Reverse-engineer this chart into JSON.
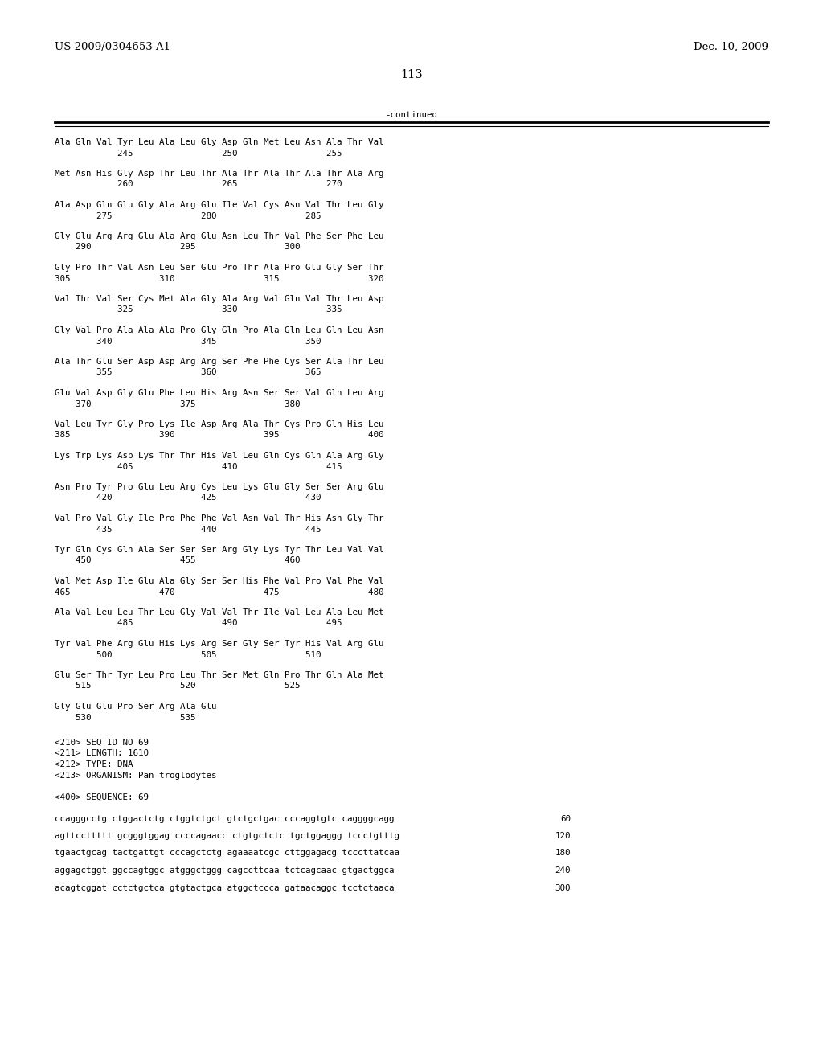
{
  "header_left": "US 2009/0304653 A1",
  "header_right": "Dec. 10, 2009",
  "page_number": "113",
  "continued_label": "-continued",
  "background_color": "#ffffff",
  "text_color": "#000000",
  "font_size_header": 9.5,
  "font_size_body": 7.8,
  "font_size_page": 10.5,
  "sequence_blocks": [
    [
      "Ala Gln Val Tyr Leu Ala Leu Gly Asp Gln Met Leu Asn Ala Thr Val",
      "            245                 250                 255"
    ],
    [
      "Met Asn His Gly Asp Thr Leu Thr Ala Thr Ala Thr Ala Thr Ala Arg",
      "            260                 265                 270"
    ],
    [
      "Ala Asp Gln Glu Gly Ala Arg Glu Ile Val Cys Asn Val Thr Leu Gly",
      "        275                 280                 285"
    ],
    [
      "Gly Glu Arg Arg Glu Ala Arg Glu Asn Leu Thr Val Phe Ser Phe Leu",
      "    290                 295                 300"
    ],
    [
      "Gly Pro Thr Val Asn Leu Ser Glu Pro Thr Ala Pro Glu Gly Ser Thr",
      "305                 310                 315                 320"
    ],
    [
      "Val Thr Val Ser Cys Met Ala Gly Ala Arg Val Gln Val Thr Leu Asp",
      "            325                 330                 335"
    ],
    [
      "Gly Val Pro Ala Ala Ala Pro Gly Gln Pro Ala Gln Leu Gln Leu Asn",
      "        340                 345                 350"
    ],
    [
      "Ala Thr Glu Ser Asp Asp Arg Arg Ser Phe Phe Cys Ser Ala Thr Leu",
      "        355                 360                 365"
    ],
    [
      "Glu Val Asp Gly Glu Phe Leu His Arg Asn Ser Ser Val Gln Leu Arg",
      "    370                 375                 380"
    ],
    [
      "Val Leu Tyr Gly Pro Lys Ile Asp Arg Ala Thr Cys Pro Gln His Leu",
      "385                 390                 395                 400"
    ],
    [
      "Lys Trp Lys Asp Lys Thr Thr His Val Leu Gln Cys Gln Ala Arg Gly",
      "            405                 410                 415"
    ],
    [
      "Asn Pro Tyr Pro Glu Leu Arg Cys Leu Lys Glu Gly Ser Ser Arg Glu",
      "        420                 425                 430"
    ],
    [
      "Val Pro Val Gly Ile Pro Phe Phe Val Asn Val Thr His Asn Gly Thr",
      "        435                 440                 445"
    ],
    [
      "Tyr Gln Cys Gln Ala Ser Ser Ser Arg Gly Lys Tyr Thr Leu Val Val",
      "    450                 455                 460"
    ],
    [
      "Val Met Asp Ile Glu Ala Gly Ser Ser His Phe Val Pro Val Phe Val",
      "465                 470                 475                 480"
    ],
    [
      "Ala Val Leu Leu Thr Leu Gly Val Val Thr Ile Val Leu Ala Leu Met",
      "            485                 490                 495"
    ],
    [
      "Tyr Val Phe Arg Glu His Lys Arg Ser Gly Ser Tyr His Val Arg Glu",
      "        500                 505                 510"
    ],
    [
      "Glu Ser Thr Tyr Leu Pro Leu Thr Ser Met Gln Pro Thr Gln Ala Met",
      "    515                 520                 525"
    ],
    [
      "Gly Glu Glu Pro Ser Arg Ala Glu",
      "    530                 535"
    ]
  ],
  "metadata_lines": [
    "<210> SEQ ID NO 69",
    "<211> LENGTH: 1610",
    "<212> TYPE: DNA",
    "<213> ORGANISM: Pan troglodytes",
    "",
    "<400> SEQUENCE: 69"
  ],
  "dna_lines": [
    [
      "ccagggcctg ctggactctg ctggtctgct gtctgctgac cccaggtgtc caggggcagg",
      "60"
    ],
    [
      "agttccttttt gcgggtggag ccccagaacc ctgtgctctc tgctggaggg tccctgtttg",
      "120"
    ],
    [
      "tgaactgcag tactgattgt cccagctctg agaaaatcgc cttggagacg tcccttatcaa",
      "180"
    ],
    [
      "aggagctggt ggccagtggc atgggctggg cagccttcaa tctcagcaac gtgactggca",
      "240"
    ],
    [
      "acagtcggat cctctgctca gtgtactgca atggctccca gataacaggc tcctctaaca",
      "300"
    ]
  ]
}
